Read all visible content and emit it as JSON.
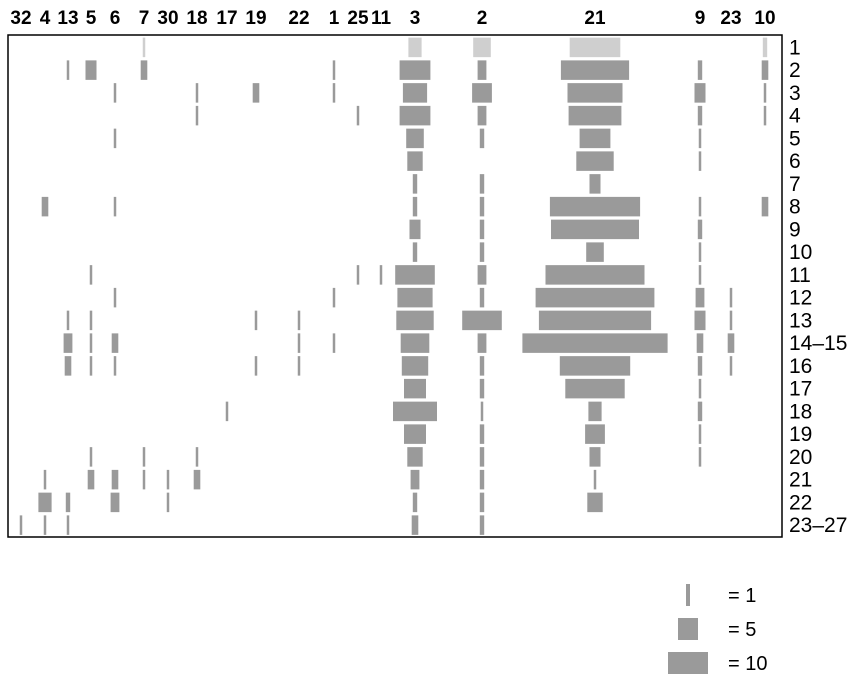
{
  "chart_data": {
    "type": "heatmap",
    "columns": [
      "32",
      "4",
      "13",
      "5",
      "6",
      "7",
      "30",
      "18",
      "17",
      "19",
      "22",
      "1",
      "25",
      "11",
      "3",
      "2",
      "21",
      "9",
      "23",
      "10"
    ],
    "rows": [
      "1",
      "2",
      "3",
      "4",
      "5",
      "6",
      "7",
      "8",
      "9",
      "10",
      "11",
      "12",
      "13",
      "14–15",
      "16",
      "17",
      "18",
      "19",
      "20",
      "21",
      "22",
      "23–27"
    ],
    "cells": [
      {
        "col": "7",
        "row": "1",
        "value": 1,
        "style": "light"
      },
      {
        "col": "3",
        "row": "1",
        "value": 6,
        "style": "light"
      },
      {
        "col": "2",
        "row": "1",
        "value": 8,
        "style": "light"
      },
      {
        "col": "21",
        "row": "1",
        "value": 23,
        "style": "light"
      },
      {
        "col": "10",
        "row": "1",
        "value": 2,
        "style": "light"
      },
      {
        "col": "13",
        "row": "2",
        "value": 1
      },
      {
        "col": "5",
        "row": "2",
        "value": 5
      },
      {
        "col": "7",
        "row": "2",
        "value": 3
      },
      {
        "col": "1",
        "row": "2",
        "value": 1
      },
      {
        "col": "3",
        "row": "2",
        "value": 14
      },
      {
        "col": "2",
        "row": "2",
        "value": 4
      },
      {
        "col": "21",
        "row": "2",
        "value": 31
      },
      {
        "col": "9",
        "row": "2",
        "value": 2
      },
      {
        "col": "10",
        "row": "2",
        "value": 3
      },
      {
        "col": "6",
        "row": "3",
        "value": 1
      },
      {
        "col": "18",
        "row": "3",
        "value": 1
      },
      {
        "col": "19",
        "row": "3",
        "value": 3
      },
      {
        "col": "1",
        "row": "3",
        "value": 1
      },
      {
        "col": "3",
        "row": "3",
        "value": 11
      },
      {
        "col": "2",
        "row": "3",
        "value": 9
      },
      {
        "col": "21",
        "row": "3",
        "value": 25
      },
      {
        "col": "9",
        "row": "3",
        "value": 5
      },
      {
        "col": "10",
        "row": "3",
        "value": 1
      },
      {
        "col": "18",
        "row": "4",
        "value": 1
      },
      {
        "col": "25",
        "row": "4",
        "value": 1
      },
      {
        "col": "3",
        "row": "4",
        "value": 14
      },
      {
        "col": "2",
        "row": "4",
        "value": 4
      },
      {
        "col": "21",
        "row": "4",
        "value": 24
      },
      {
        "col": "9",
        "row": "4",
        "value": 2
      },
      {
        "col": "10",
        "row": "4",
        "value": 1
      },
      {
        "col": "6",
        "row": "5",
        "value": 1
      },
      {
        "col": "3",
        "row": "5",
        "value": 8
      },
      {
        "col": "2",
        "row": "5",
        "value": 2
      },
      {
        "col": "21",
        "row": "5",
        "value": 14
      },
      {
        "col": "9",
        "row": "5",
        "value": 1
      },
      {
        "col": "3",
        "row": "6",
        "value": 7
      },
      {
        "col": "21",
        "row": "6",
        "value": 17
      },
      {
        "col": "9",
        "row": "6",
        "value": 1
      },
      {
        "col": "3",
        "row": "7",
        "value": 2
      },
      {
        "col": "2",
        "row": "7",
        "value": 2
      },
      {
        "col": "21",
        "row": "7",
        "value": 5
      },
      {
        "col": "4",
        "row": "8",
        "value": 3
      },
      {
        "col": "6",
        "row": "8",
        "value": 1
      },
      {
        "col": "3",
        "row": "8",
        "value": 2
      },
      {
        "col": "2",
        "row": "8",
        "value": 2
      },
      {
        "col": "21",
        "row": "8",
        "value": 41
      },
      {
        "col": "9",
        "row": "8",
        "value": 1
      },
      {
        "col": "10",
        "row": "8",
        "value": 3
      },
      {
        "col": "3",
        "row": "9",
        "value": 5
      },
      {
        "col": "2",
        "row": "9",
        "value": 2
      },
      {
        "col": "21",
        "row": "9",
        "value": 40
      },
      {
        "col": "9",
        "row": "9",
        "value": 2
      },
      {
        "col": "3",
        "row": "10",
        "value": 2
      },
      {
        "col": "2",
        "row": "10",
        "value": 2
      },
      {
        "col": "21",
        "row": "10",
        "value": 8
      },
      {
        "col": "9",
        "row": "10",
        "value": 1
      },
      {
        "col": "5",
        "row": "11",
        "value": 1
      },
      {
        "col": "25",
        "row": "11",
        "value": 1
      },
      {
        "col": "11",
        "row": "11",
        "value": 1
      },
      {
        "col": "3",
        "row": "11",
        "value": 18
      },
      {
        "col": "2",
        "row": "11",
        "value": 4
      },
      {
        "col": "21",
        "row": "11",
        "value": 45
      },
      {
        "col": "9",
        "row": "11",
        "value": 1
      },
      {
        "col": "6",
        "row": "12",
        "value": 1
      },
      {
        "col": "1",
        "row": "12",
        "value": 1
      },
      {
        "col": "3",
        "row": "12",
        "value": 16
      },
      {
        "col": "2",
        "row": "12",
        "value": 2
      },
      {
        "col": "21",
        "row": "12",
        "value": 54
      },
      {
        "col": "9",
        "row": "12",
        "value": 4
      },
      {
        "col": "23",
        "row": "12",
        "value": 1
      },
      {
        "col": "13",
        "row": "13",
        "value": 1
      },
      {
        "col": "5",
        "row": "13",
        "value": 1
      },
      {
        "col": "19",
        "row": "13",
        "value": 1
      },
      {
        "col": "22",
        "row": "13",
        "value": 1
      },
      {
        "col": "3",
        "row": "13",
        "value": 17
      },
      {
        "col": "2",
        "row": "13",
        "value": 18
      },
      {
        "col": "21",
        "row": "13",
        "value": 51
      },
      {
        "col": "9",
        "row": "13",
        "value": 5
      },
      {
        "col": "23",
        "row": "13",
        "value": 1
      },
      {
        "col": "13",
        "row": "14–15",
        "value": 4
      },
      {
        "col": "5",
        "row": "14–15",
        "value": 1
      },
      {
        "col": "6",
        "row": "14–15",
        "value": 3
      },
      {
        "col": "22",
        "row": "14–15",
        "value": 1
      },
      {
        "col": "1",
        "row": "14–15",
        "value": 1
      },
      {
        "col": "3",
        "row": "14–15",
        "value": 13
      },
      {
        "col": "2",
        "row": "14–15",
        "value": 4
      },
      {
        "col": "21",
        "row": "14–15",
        "value": 66
      },
      {
        "col": "9",
        "row": "14–15",
        "value": 3
      },
      {
        "col": "23",
        "row": "14–15",
        "value": 3
      },
      {
        "col": "13",
        "row": "16",
        "value": 3
      },
      {
        "col": "5",
        "row": "16",
        "value": 1
      },
      {
        "col": "6",
        "row": "16",
        "value": 1
      },
      {
        "col": "19",
        "row": "16",
        "value": 1
      },
      {
        "col": "22",
        "row": "16",
        "value": 1
      },
      {
        "col": "3",
        "row": "16",
        "value": 12
      },
      {
        "col": "2",
        "row": "16",
        "value": 2
      },
      {
        "col": "21",
        "row": "16",
        "value": 32
      },
      {
        "col": "9",
        "row": "16",
        "value": 2
      },
      {
        "col": "23",
        "row": "16",
        "value": 1
      },
      {
        "col": "3",
        "row": "17",
        "value": 10
      },
      {
        "col": "2",
        "row": "17",
        "value": 2
      },
      {
        "col": "21",
        "row": "17",
        "value": 27
      },
      {
        "col": "9",
        "row": "17",
        "value": 1
      },
      {
        "col": "17",
        "row": "18",
        "value": 1
      },
      {
        "col": "3",
        "row": "18",
        "value": 20
      },
      {
        "col": "2",
        "row": "18",
        "value": 1
      },
      {
        "col": "21",
        "row": "18",
        "value": 6
      },
      {
        "col": "9",
        "row": "18",
        "value": 2
      },
      {
        "col": "3",
        "row": "19",
        "value": 10
      },
      {
        "col": "2",
        "row": "19",
        "value": 2
      },
      {
        "col": "21",
        "row": "19",
        "value": 9
      },
      {
        "col": "9",
        "row": "19",
        "value": 1
      },
      {
        "col": "5",
        "row": "20",
        "value": 1
      },
      {
        "col": "7",
        "row": "20",
        "value": 1
      },
      {
        "col": "18",
        "row": "20",
        "value": 1
      },
      {
        "col": "3",
        "row": "20",
        "value": 7
      },
      {
        "col": "2",
        "row": "20",
        "value": 2
      },
      {
        "col": "21",
        "row": "20",
        "value": 5
      },
      {
        "col": "9",
        "row": "20",
        "value": 1
      },
      {
        "col": "4",
        "row": "21",
        "value": 1
      },
      {
        "col": "5",
        "row": "21",
        "value": 3
      },
      {
        "col": "6",
        "row": "21",
        "value": 3
      },
      {
        "col": "7",
        "row": "21",
        "value": 1
      },
      {
        "col": "30",
        "row": "21",
        "value": 1
      },
      {
        "col": "18",
        "row": "21",
        "value": 3
      },
      {
        "col": "3",
        "row": "21",
        "value": 4
      },
      {
        "col": "2",
        "row": "21",
        "value": 2
      },
      {
        "col": "21",
        "row": "21",
        "value": 1
      },
      {
        "col": "4",
        "row": "22",
        "value": 6
      },
      {
        "col": "13",
        "row": "22",
        "value": 2
      },
      {
        "col": "6",
        "row": "22",
        "value": 4
      },
      {
        "col": "30",
        "row": "22",
        "value": 1
      },
      {
        "col": "3",
        "row": "22",
        "value": 2
      },
      {
        "col": "2",
        "row": "22",
        "value": 2
      },
      {
        "col": "21",
        "row": "22",
        "value": 7
      },
      {
        "col": "32",
        "row": "23–27",
        "value": 1
      },
      {
        "col": "4",
        "row": "23–27",
        "value": 1
      },
      {
        "col": "13",
        "row": "23–27",
        "value": 1
      },
      {
        "col": "3",
        "row": "23–27",
        "value": 3
      },
      {
        "col": "2",
        "row": "23–27",
        "value": 2
      }
    ]
  },
  "legend": [
    {
      "label": "= 1",
      "value": 1
    },
    {
      "label": "= 5",
      "value": 5
    },
    {
      "label": "= 10",
      "value": 10
    }
  ],
  "colors": {
    "mark": "#9a9a9a",
    "mark_light": "#cfcfcf",
    "frame": "#000000"
  }
}
